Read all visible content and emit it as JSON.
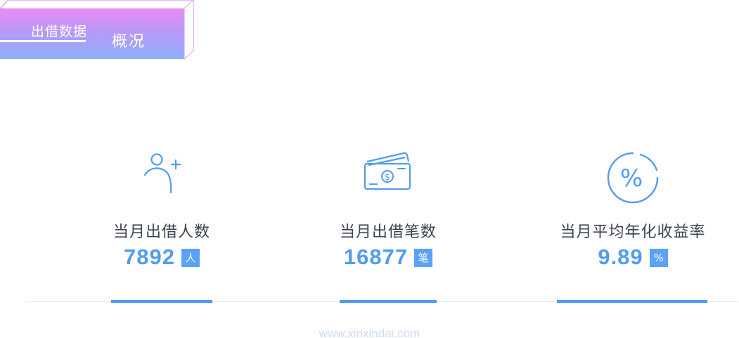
{
  "header": {
    "tab_label": "出借数据",
    "tab_sublabel": "概况",
    "gradient_start": "#e98af6",
    "gradient_end": "#8cb0fb"
  },
  "stats": [
    {
      "icon": "add-user-icon",
      "label": "当月出借人数",
      "value": "7892",
      "unit": "人"
    },
    {
      "icon": "money-card-icon",
      "label": "当月出借笔数",
      "value": "16877",
      "unit": "笔"
    },
    {
      "icon": "percent-icon",
      "label": "当月平均年化收益率",
      "value": "9.89",
      "unit": "%"
    }
  ],
  "watermark": "www.xinxindai.com",
  "colors": {
    "accent": "#529cf0",
    "label": "#3c4353",
    "divider": "#d7e5f6"
  }
}
